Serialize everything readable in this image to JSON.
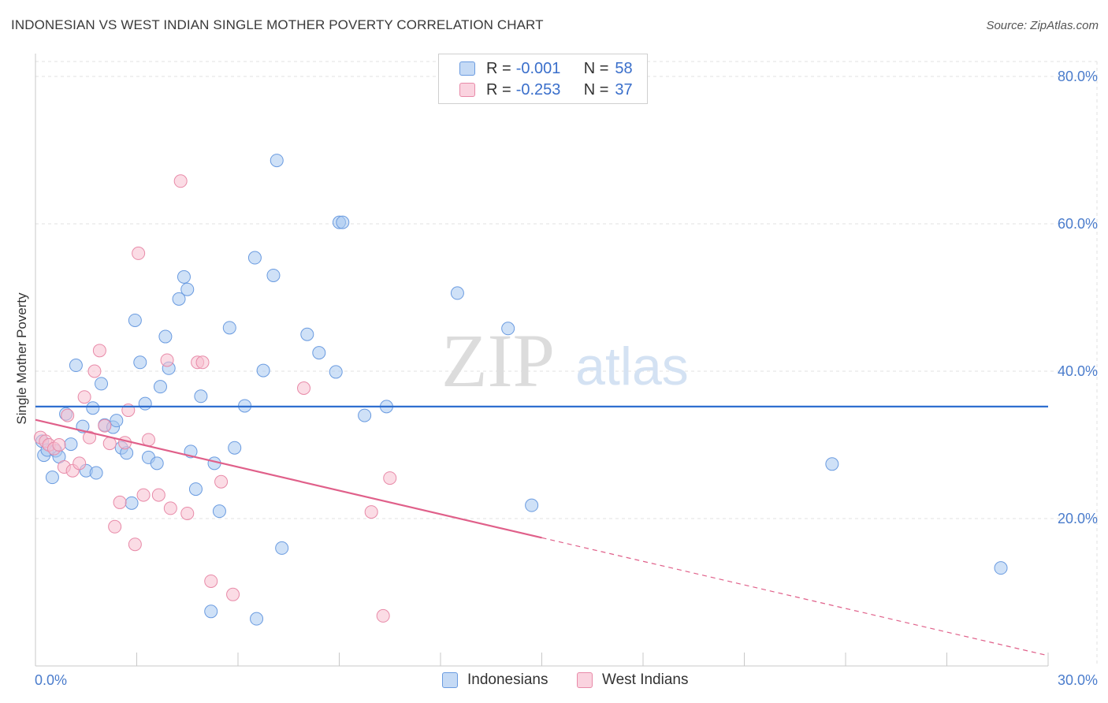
{
  "header": {
    "title": "INDONESIAN VS WEST INDIAN SINGLE MOTHER POVERTY CORRELATION CHART",
    "source": "Source: ZipAtlas.com"
  },
  "watermark": {
    "zip": "ZIP",
    "atlas": "atlas"
  },
  "legend": {
    "rows": [
      {
        "r_label": "R =",
        "r_value": "-0.001",
        "n_label": "N =",
        "n_value": "58",
        "color": "#a8c8f0"
      },
      {
        "r_label": "R =",
        "r_value": "-0.253",
        "n_label": "N =",
        "n_value": "37",
        "color": "#f7bfd0"
      }
    ]
  },
  "bottom_legend": {
    "items": [
      {
        "label": "Indonesians",
        "color": "#a8c8f0"
      },
      {
        "label": "West Indians",
        "color": "#f7bfd0"
      }
    ]
  },
  "chart_data": {
    "type": "scatter",
    "title": "INDONESIAN VS WEST INDIAN SINGLE MOTHER POVERTY CORRELATION CHART",
    "xlabel": "",
    "ylabel": "Single Mother Poverty",
    "xlim": [
      0,
      30
    ],
    "ylim": [
      0,
      80
    ],
    "x_tick_labels": [
      "0.0%",
      "30.0%"
    ],
    "y_ticks": [
      20,
      40,
      60,
      80
    ],
    "y_tick_labels": [
      "20.0%",
      "40.0%",
      "60.0%",
      "80.0%"
    ],
    "grid": true,
    "series": [
      {
        "name": "Indonesians",
        "color": "#6a9be0",
        "fill": "#a8c8f0",
        "trend": {
          "x": [
            0,
            30
          ],
          "y": [
            35.2,
            35.2
          ],
          "color": "#2f6fd0"
        },
        "points": [
          [
            0.2,
            30.5
          ],
          [
            0.25,
            28.6
          ],
          [
            0.35,
            29.3
          ],
          [
            0.5,
            25.6
          ],
          [
            0.6,
            29.2
          ],
          [
            0.7,
            28.4
          ],
          [
            0.9,
            34.2
          ],
          [
            1.05,
            30.1
          ],
          [
            1.2,
            40.8
          ],
          [
            1.4,
            32.5
          ],
          [
            1.5,
            26.5
          ],
          [
            1.7,
            35.0
          ],
          [
            1.8,
            26.2
          ],
          [
            1.95,
            38.3
          ],
          [
            2.05,
            32.7
          ],
          [
            2.3,
            32.4
          ],
          [
            2.4,
            33.3
          ],
          [
            2.55,
            29.6
          ],
          [
            2.7,
            28.9
          ],
          [
            2.85,
            22.1
          ],
          [
            2.95,
            46.9
          ],
          [
            3.1,
            41.2
          ],
          [
            3.25,
            35.6
          ],
          [
            3.35,
            28.3
          ],
          [
            3.6,
            27.5
          ],
          [
            3.7,
            37.9
          ],
          [
            3.85,
            44.7
          ],
          [
            3.95,
            40.4
          ],
          [
            4.25,
            49.8
          ],
          [
            4.4,
            52.8
          ],
          [
            4.5,
            51.1
          ],
          [
            4.6,
            29.1
          ],
          [
            4.75,
            24.0
          ],
          [
            4.9,
            36.6
          ],
          [
            5.2,
            7.4
          ],
          [
            5.3,
            27.5
          ],
          [
            5.45,
            21.0
          ],
          [
            5.75,
            45.9
          ],
          [
            5.9,
            29.6
          ],
          [
            6.2,
            35.3
          ],
          [
            6.5,
            55.4
          ],
          [
            6.55,
            6.4
          ],
          [
            6.75,
            40.1
          ],
          [
            7.05,
            53.0
          ],
          [
            7.15,
            68.6
          ],
          [
            7.3,
            16.0
          ],
          [
            8.05,
            45.0
          ],
          [
            8.4,
            42.5
          ],
          [
            8.9,
            39.9
          ],
          [
            9.0,
            60.2
          ],
          [
            9.1,
            60.2
          ],
          [
            9.75,
            34.0
          ],
          [
            10.4,
            35.2
          ],
          [
            12.5,
            50.6
          ],
          [
            14.0,
            45.8
          ],
          [
            14.7,
            21.8
          ],
          [
            23.6,
            27.4
          ],
          [
            28.6,
            13.3
          ]
        ]
      },
      {
        "name": "West Indians",
        "color": "#e88aa8",
        "fill": "#f7bfd0",
        "trend": {
          "x": [
            0,
            15
          ],
          "y": [
            33.4,
            17.4
          ],
          "dashed_to": {
            "x": 30,
            "y": 1.4
          },
          "color": "#e0608a"
        },
        "points": [
          [
            0.15,
            31.0
          ],
          [
            0.3,
            30.5
          ],
          [
            0.4,
            30.0
          ],
          [
            0.55,
            29.5
          ],
          [
            0.7,
            30.0
          ],
          [
            0.85,
            27.0
          ],
          [
            0.95,
            34.0
          ],
          [
            1.1,
            26.5
          ],
          [
            1.3,
            27.5
          ],
          [
            1.45,
            36.5
          ],
          [
            1.6,
            31.0
          ],
          [
            1.75,
            40.0
          ],
          [
            1.9,
            42.8
          ],
          [
            2.05,
            32.6
          ],
          [
            2.2,
            30.2
          ],
          [
            2.35,
            18.9
          ],
          [
            2.5,
            22.2
          ],
          [
            2.65,
            30.3
          ],
          [
            2.75,
            34.7
          ],
          [
            2.95,
            16.5
          ],
          [
            3.05,
            56.0
          ],
          [
            3.2,
            23.2
          ],
          [
            3.35,
            30.7
          ],
          [
            3.65,
            23.2
          ],
          [
            3.9,
            41.5
          ],
          [
            4.0,
            21.4
          ],
          [
            4.3,
            65.8
          ],
          [
            4.5,
            20.7
          ],
          [
            4.8,
            41.2
          ],
          [
            4.95,
            41.2
          ],
          [
            5.2,
            11.5
          ],
          [
            5.5,
            25.0
          ],
          [
            5.85,
            9.7
          ],
          [
            7.95,
            37.7
          ],
          [
            9.95,
            20.9
          ],
          [
            10.3,
            6.8
          ],
          [
            10.5,
            25.5
          ]
        ]
      }
    ]
  }
}
